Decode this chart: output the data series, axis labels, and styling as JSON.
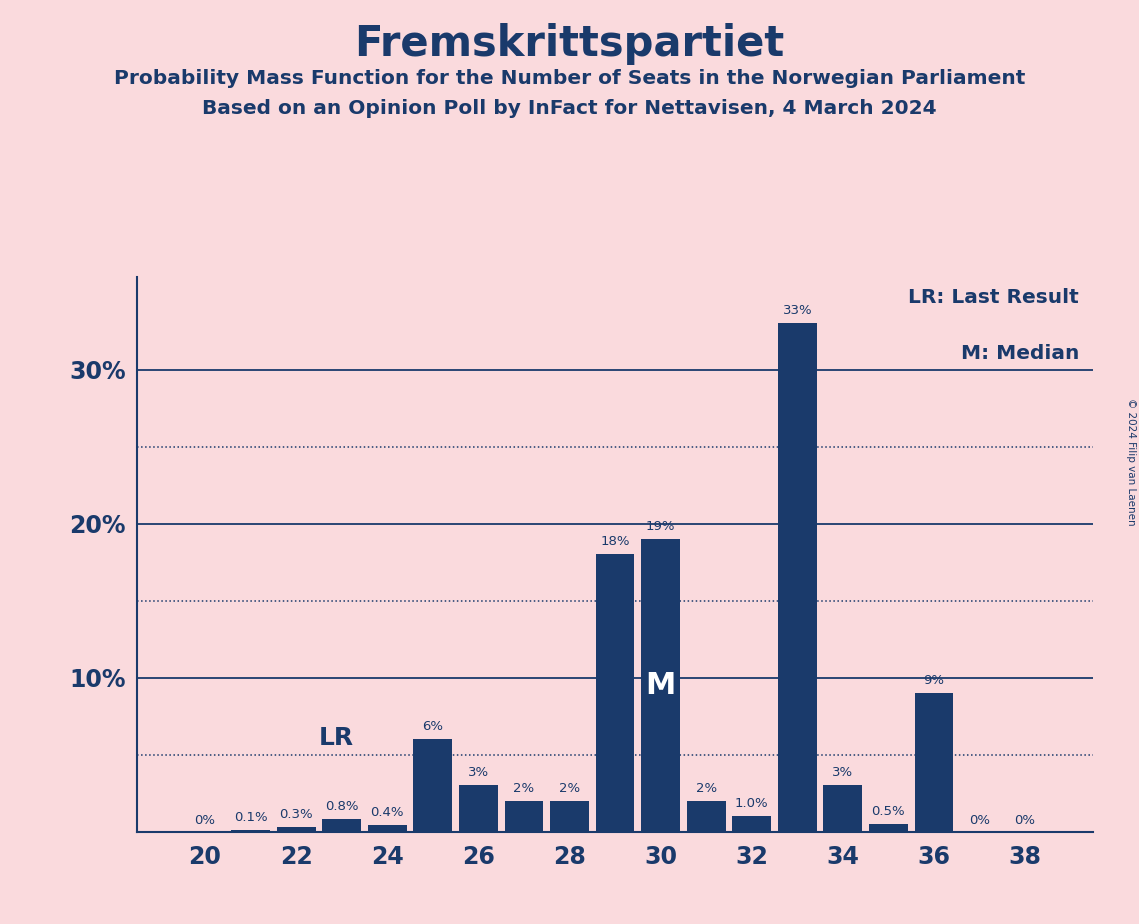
{
  "title": "Fremskrittspartiet",
  "subtitle1": "Probability Mass Function for the Number of Seats in the Norwegian Parliament",
  "subtitle2": "Based on an Opinion Poll by InFact for Nettavisen, 4 March 2024",
  "copyright": "© 2024 Filip van Laenen",
  "seats": [
    20,
    21,
    22,
    23,
    24,
    25,
    26,
    27,
    28,
    29,
    30,
    31,
    32,
    33,
    34,
    35,
    36,
    37,
    38
  ],
  "probabilities": [
    0.0,
    0.1,
    0.3,
    0.8,
    0.4,
    6.0,
    3.0,
    2.0,
    2.0,
    18.0,
    19.0,
    2.0,
    1.0,
    33.0,
    3.0,
    0.5,
    9.0,
    0.0,
    0.0
  ],
  "bar_color": "#1a3a6b",
  "background_color": "#fadadd",
  "text_color": "#1a3a6b",
  "lr_seat": 21,
  "median_seat": 30,
  "xticks": [
    20,
    22,
    24,
    26,
    28,
    30,
    32,
    34,
    36,
    38
  ],
  "ymax": 36,
  "dotted_lines": [
    5,
    15,
    25
  ],
  "solid_lines": [
    10,
    20,
    30
  ],
  "legend_lr": "LR: Last Result",
  "legend_m": "M: Median",
  "label_positions": {
    "20": "0%",
    "21": "0.1%",
    "22": "0.3%",
    "23": "0.8%",
    "24": "0.4%",
    "25": "6%",
    "26": "3%",
    "27": "2%",
    "28": "2%",
    "29": "18%",
    "30": "19%",
    "31": "2%",
    "32": "1.0%",
    "33": "33%",
    "34": "3%",
    "35": "0.5%",
    "36": "9%",
    "37": "0%",
    "38": "0%"
  }
}
